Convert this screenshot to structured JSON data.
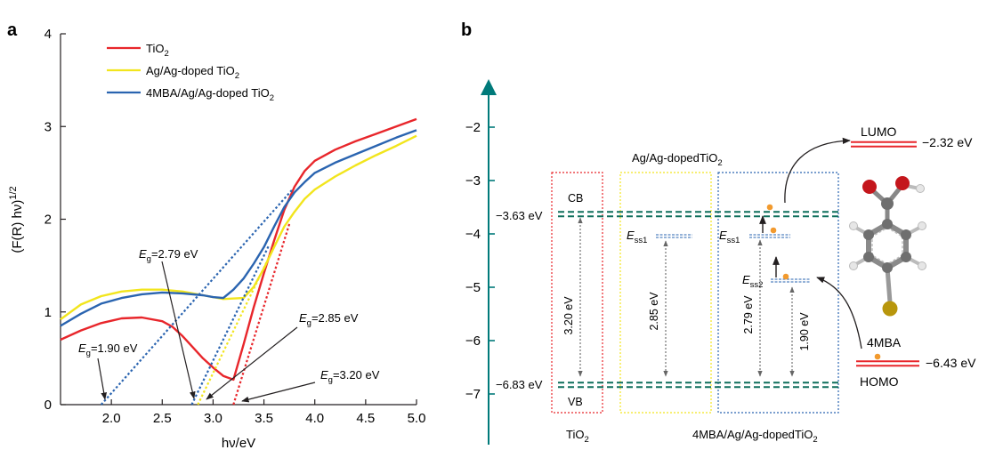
{
  "chart_data": [
    {
      "panel_label": "a",
      "type": "line",
      "xlabel": "hν/eV",
      "ylabel_main": "(F(R) hν)",
      "ylabel_sup": "1/2",
      "xlim": [
        1.5,
        5.0
      ],
      "ylim": [
        0,
        4
      ],
      "x_ticks": [
        2.0,
        2.5,
        3.0,
        3.5,
        4.0,
        4.5,
        5.0
      ],
      "y_ticks": [
        0,
        1,
        2,
        3,
        4
      ],
      "x_tick_labels": [
        "2.0",
        "2.5",
        "3.0",
        "3.5",
        "4.0",
        "4.5",
        "5.0"
      ],
      "y_tick_labels": [
        "0",
        "1",
        "2",
        "3",
        "4"
      ],
      "grid": false,
      "legend_position": "top-left",
      "colors": {
        "TiO2": "#e8262b",
        "AgTiO2": "#f2e51d",
        "MBA": "#2a64b0"
      },
      "series": [
        {
          "name_main": "TiO",
          "name_sub": "2",
          "name_tail": "",
          "color": "#e8262b",
          "x": [
            1.5,
            1.7,
            1.9,
            2.1,
            2.3,
            2.5,
            2.6,
            2.7,
            2.8,
            2.9,
            3.0,
            3.1,
            3.2,
            3.3,
            3.4,
            3.5,
            3.6,
            3.7,
            3.8,
            3.9,
            4.0,
            4.2,
            4.4,
            4.6,
            4.8,
            5.0
          ],
          "y": [
            0.7,
            0.8,
            0.88,
            0.93,
            0.94,
            0.9,
            0.84,
            0.74,
            0.62,
            0.5,
            0.4,
            0.31,
            0.27,
            0.65,
            1.05,
            1.42,
            1.77,
            2.1,
            2.35,
            2.52,
            2.63,
            2.75,
            2.84,
            2.92,
            3.0,
            3.08
          ]
        },
        {
          "name_main": "Ag/Ag-doped TiO",
          "name_sub": "2",
          "name_tail": "",
          "color": "#f2e51d",
          "x": [
            1.5,
            1.7,
            1.9,
            2.1,
            2.3,
            2.5,
            2.7,
            2.9,
            3.1,
            3.3,
            3.4,
            3.5,
            3.6,
            3.7,
            3.8,
            3.9,
            4.0,
            4.2,
            4.4,
            4.6,
            4.8,
            5.0
          ],
          "y": [
            0.92,
            1.08,
            1.17,
            1.22,
            1.24,
            1.24,
            1.22,
            1.18,
            1.14,
            1.15,
            1.27,
            1.47,
            1.7,
            1.92,
            2.08,
            2.22,
            2.32,
            2.46,
            2.58,
            2.69,
            2.79,
            2.9
          ]
        },
        {
          "name_main": "4MBA/Ag/Ag-doped TiO",
          "name_sub": "2",
          "name_tail": "",
          "color": "#2a64b0",
          "x": [
            1.5,
            1.7,
            1.9,
            2.1,
            2.3,
            2.5,
            2.7,
            2.9,
            3.0,
            3.1,
            3.2,
            3.3,
            3.4,
            3.5,
            3.6,
            3.7,
            3.8,
            3.9,
            4.0,
            4.2,
            4.4,
            4.6,
            4.8,
            5.0
          ],
          "y": [
            0.85,
            0.98,
            1.09,
            1.15,
            1.19,
            1.21,
            1.2,
            1.18,
            1.16,
            1.15,
            1.24,
            1.36,
            1.52,
            1.7,
            1.92,
            2.13,
            2.29,
            2.4,
            2.5,
            2.61,
            2.7,
            2.79,
            2.88,
            2.96
          ]
        }
      ],
      "tangent_lines": [
        {
          "color": "#2a64b0",
          "x": [
            1.9,
            3.78
          ],
          "y": [
            0.0,
            2.32
          ]
        },
        {
          "color": "#2a64b0",
          "x": [
            2.79,
            3.55
          ],
          "y": [
            0.0,
            1.72
          ]
        },
        {
          "color": "#f2e51d",
          "x": [
            2.85,
            3.62
          ],
          "y": [
            0.0,
            1.75
          ]
        },
        {
          "color": "#e8262b",
          "x": [
            3.2,
            3.75
          ],
          "y": [
            0.0,
            1.95
          ]
        }
      ],
      "annotations": [
        {
          "main": "E",
          "sub": "g",
          "rest": "=2.79 eV",
          "arrow_to": [
            2.79,
            0.0
          ]
        },
        {
          "main": "E",
          "sub": "g",
          "rest": "=1.90 eV",
          "arrow_to": [
            1.9,
            0.0
          ]
        },
        {
          "main": "E",
          "sub": "g",
          "rest": "=2.85 eV",
          "arrow_to": [
            2.85,
            0.0
          ]
        },
        {
          "main": "E",
          "sub": "g",
          "rest": "=3.20 eV",
          "arrow_to": [
            3.2,
            0.0
          ]
        }
      ]
    },
    {
      "panel_label": "b",
      "type": "energy-level diagram",
      "ylim": [
        -7.5,
        -1.3
      ],
      "y_ticks": [
        -2,
        -3,
        -4,
        -5,
        -6,
        -7
      ],
      "y_tick_labels": [
        "−2",
        "−3",
        "−4",
        "−5",
        "−6",
        "−7"
      ],
      "cb_label": "−3.63 eV",
      "vb_label": "−6.83 eV",
      "cb_value": -3.63,
      "vb_value": -6.83,
      "cb_text": "CB",
      "vb_text": "VB",
      "title_ag": {
        "main": "Ag/Ag-dopedTiO",
        "sub": "2"
      },
      "label_tio2": {
        "main": "TiO",
        "sub": "2"
      },
      "label_mba": {
        "main": "4MBA/Ag/Ag-dopedTiO",
        "sub": "2"
      },
      "ess1": {
        "main": "E",
        "sub": "ss1"
      },
      "ess2": {
        "main": "E",
        "sub": "ss2"
      },
      "gaps": [
        "3.20 eV",
        "2.85 eV",
        "2.79 eV",
        "1.90 eV"
      ],
      "lumo": {
        "label": "LUMO",
        "value_text": "−2.32 eV",
        "value": -2.32
      },
      "homo": {
        "label": "HOMO",
        "value_text": "−6.43 eV",
        "value": -6.43
      },
      "molecule": "4MBA",
      "colors": {
        "axis": "#007a7a",
        "band": "#0e6f5c",
        "box_tio2": "#e8262b",
        "box_ag": "#f2e51d",
        "box_mba": "#2a64b0",
        "surface_state": "#2a64b0",
        "orbital": "#e8262b",
        "electron": "#f29a2e"
      }
    }
  ]
}
